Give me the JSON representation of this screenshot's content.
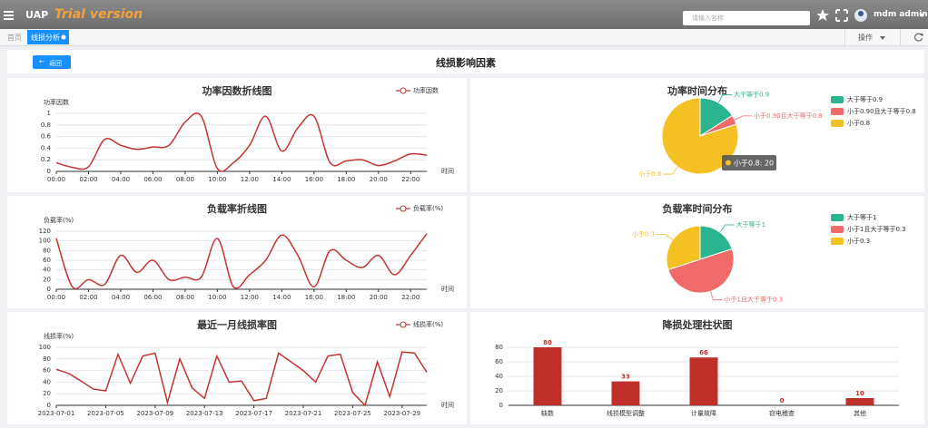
{
  "header": {
    "brand": "UAP",
    "edition": "Trial version",
    "search_placeholder": "请输入名称",
    "user": "mdm admin"
  },
  "tabs": {
    "home": "首页",
    "active": "线损分析",
    "actions": "操作"
  },
  "page": {
    "title": "线损影响因素",
    "back": "返回"
  },
  "chart_data": [
    {
      "type": "line",
      "title": "功率因数折线图",
      "ylabel": "功率因数",
      "xlabel": "时间",
      "smooth": true,
      "categories": [
        "00:00",
        null,
        "02:00",
        null,
        "04:00",
        null,
        "06:00",
        null,
        "08:00",
        null,
        "10:00",
        null,
        "12:00",
        null,
        "14:00",
        null,
        "16:00",
        null,
        "18:00",
        null,
        "20:00",
        null,
        "22:00",
        null
      ],
      "series": [
        {
          "name": "功率因数",
          "color": "#c23531",
          "values": [
            0.15,
            0.07,
            0.08,
            0.55,
            0.45,
            0.38,
            0.42,
            0.45,
            0.85,
            0.95,
            0.05,
            0.15,
            0.45,
            0.95,
            0.35,
            0.75,
            0.95,
            0.15,
            0.18,
            0.2,
            0.1,
            0.18,
            0.3,
            0.28
          ]
        }
      ],
      "ylim": [
        0,
        1
      ],
      "yticks": [
        0,
        0.2,
        0.4,
        0.6,
        0.8,
        1
      ],
      "grid": true
    },
    {
      "type": "line",
      "title": "负载率折线图",
      "ylabel": "负载率(%)",
      "xlabel": "时间",
      "smooth": true,
      "categories": [
        "00:00",
        null,
        "02:00",
        null,
        "04:00",
        null,
        "06:00",
        null,
        "08:00",
        null,
        "10:00",
        null,
        "12:00",
        null,
        "14:00",
        null,
        "16:00",
        null,
        "18:00",
        null,
        "20:00",
        null,
        "22:00",
        null
      ],
      "series": [
        {
          "name": "负载率(%)",
          "color": "#c23531",
          "values": [
            105,
            5,
            20,
            10,
            70,
            35,
            60,
            20,
            25,
            25,
            105,
            5,
            30,
            60,
            112,
            70,
            5,
            80,
            60,
            45,
            70,
            30,
            70,
            115
          ]
        }
      ],
      "ylim": [
        0,
        120
      ],
      "yticks": [
        0,
        20,
        40,
        60,
        80,
        100,
        120
      ],
      "grid": true
    },
    {
      "type": "line",
      "title": "最近一月线损率图",
      "ylabel": "线损率(%)",
      "xlabel": "时间",
      "smooth": false,
      "categories": [
        "2023-07-01",
        null,
        null,
        null,
        "2023-07-05",
        null,
        null,
        null,
        "2023-07-09",
        null,
        null,
        null,
        "2023-07-13",
        null,
        null,
        null,
        "2023-07-17",
        null,
        null,
        null,
        "2023-07-21",
        null,
        null,
        null,
        "2023-07-25",
        null,
        null,
        null,
        "2023-07-29",
        null,
        null
      ],
      "series": [
        {
          "name": "线损率(%)",
          "color": "#c23531",
          "values": [
            62,
            55,
            42,
            28,
            25,
            88,
            38,
            85,
            90,
            5,
            80,
            30,
            12,
            85,
            40,
            42,
            8,
            12,
            90,
            75,
            60,
            40,
            85,
            88,
            22,
            0,
            75,
            15,
            92,
            90,
            57
          ]
        }
      ],
      "ylim": [
        0,
        100
      ],
      "yticks": [
        0,
        20,
        40,
        60,
        80,
        100
      ],
      "grid": true
    },
    {
      "type": "pie",
      "title": "功率时间分布",
      "categories": [
        "大于等于0.9",
        "小于0.90且大于等于0.8",
        "小于0.8"
      ],
      "values": [
        4,
        1,
        20
      ],
      "colors": [
        "#2ab48f",
        "#f06a6a",
        "#f5c022"
      ],
      "legend": "top-right",
      "tooltip": "小于0.8: 20"
    },
    {
      "type": "pie",
      "title": "负载率时间分布",
      "categories": [
        "大于等于1",
        "小于1且大于等于0.3",
        "小于0.3"
      ],
      "values": [
        20,
        50,
        30
      ],
      "colors": [
        "#2ab48f",
        "#f06a6a",
        "#f5c022"
      ],
      "legend": "top-right"
    },
    {
      "type": "bar",
      "title": "降损处理柱状图",
      "categories": [
        "缺数",
        "线损模型调整",
        "计量故障",
        "窃电稽查",
        "其他"
      ],
      "values": [
        80,
        33,
        66,
        0,
        10
      ],
      "color": "#c0302b",
      "ylim": [
        0,
        80
      ],
      "yticks": [
        0,
        20,
        40,
        60,
        80
      ],
      "grid": true
    }
  ]
}
